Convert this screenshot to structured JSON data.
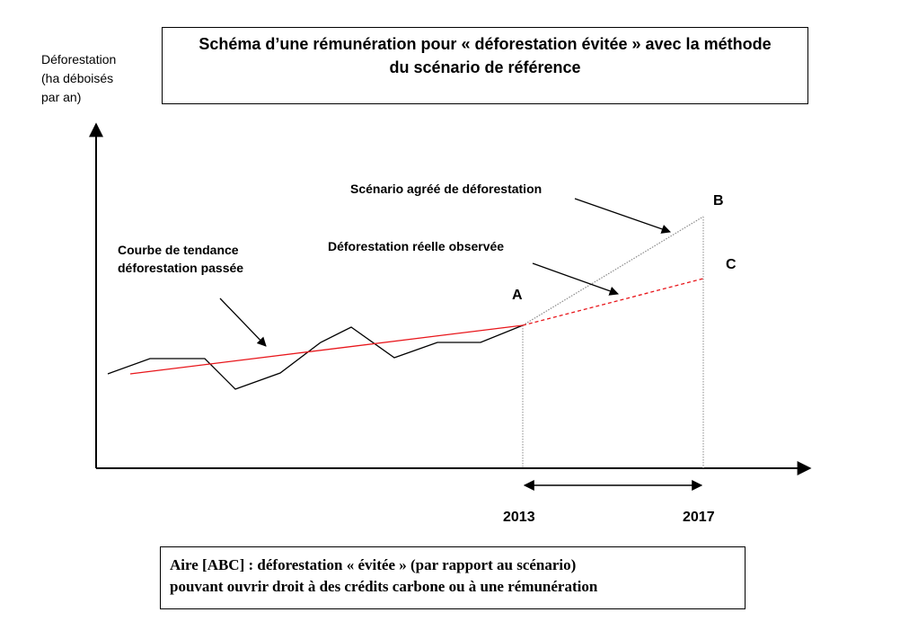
{
  "title": {
    "line1": "Schéma d’une rémunération pour « déforestation évitée » avec la méthode",
    "line2": "du scénario de référence"
  },
  "y_axis_label": [
    "Déforestation",
    "(ha déboisés",
    "par an)"
  ],
  "labels": {
    "trend": [
      "Courbe de tendance",
      "déforestation passée"
    ],
    "scenario": "Scénario agréé de déforestation",
    "observed": "Déforestation réelle observée"
  },
  "points": {
    "a": "A",
    "b": "B",
    "c": "C"
  },
  "years": {
    "start": "2013",
    "end": "2017"
  },
  "footer": {
    "line1": "Aire [ABC] : déforestation « évitée » (par rapport au scénario)",
    "line2": "pouvant ouvrir droit à des crédits carbone ou à une rémunération"
  },
  "colors": {
    "trend": "#e8161b",
    "series": "#000000",
    "scenario": "#8a8a8a"
  }
}
